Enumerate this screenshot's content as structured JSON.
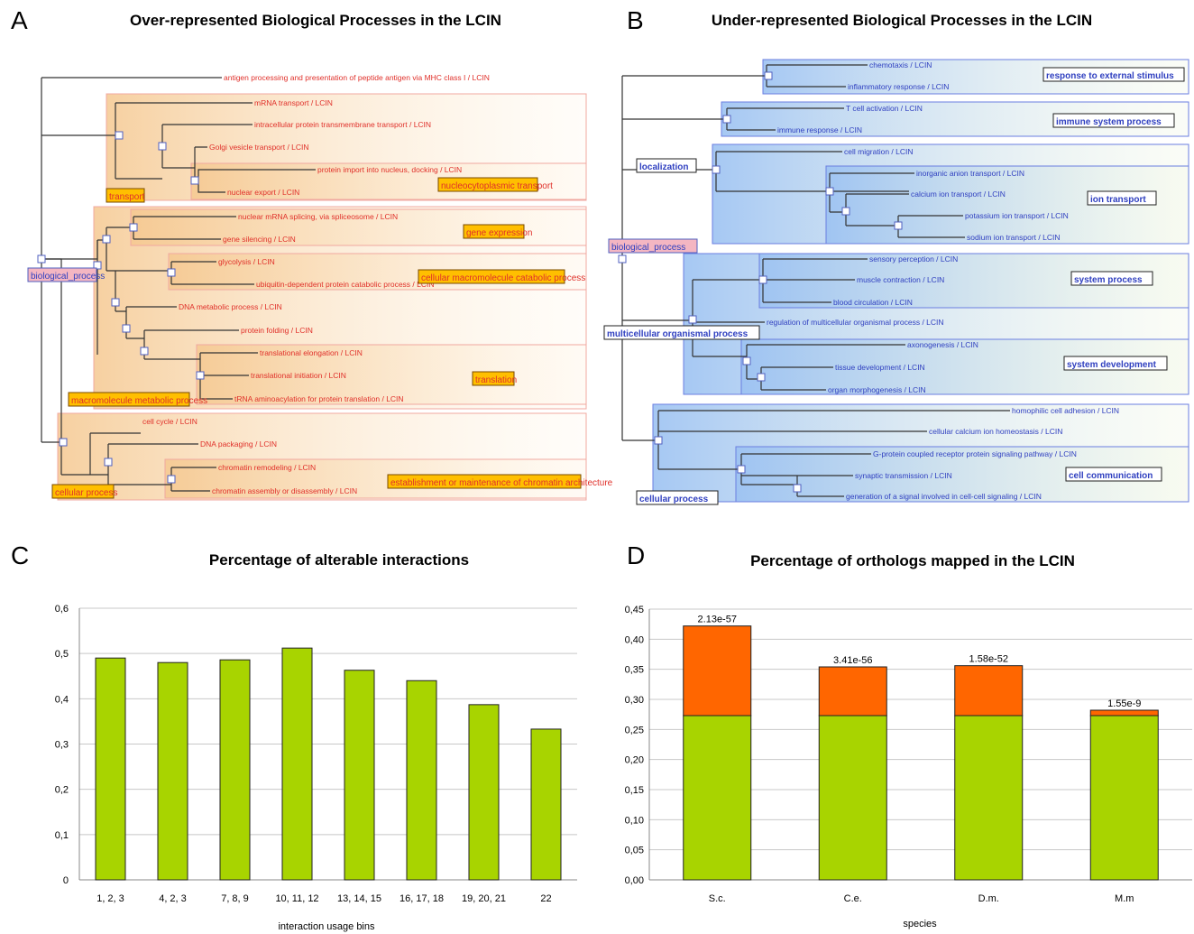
{
  "panels": {
    "A": {
      "letter": "A",
      "title": "Over-represented Biological Processes in the LCIN",
      "root": "biological_process",
      "groups": [
        {
          "key": "transport",
          "label": "transport"
        },
        {
          "key": "nucleo",
          "label": "nucleocytoplasmic transport"
        },
        {
          "key": "geneexp",
          "label": "gene expression"
        },
        {
          "key": "catab",
          "label": "cellular macromolecule catabolic process"
        },
        {
          "key": "transl",
          "label": "translation"
        },
        {
          "key": "macro",
          "label": "macromolecule metabolic process"
        },
        {
          "key": "cellproc",
          "label": "cellular process"
        },
        {
          "key": "chrom",
          "label": "establishment or maintenance of chromatin architecture"
        }
      ],
      "leaves": [
        "antigen processing and presentation of peptide antigen via MHC class I / LCIN",
        "mRNA transport / LCIN",
        "intracellular protein transmembrane transport / LCIN",
        "Golgi vesicle transport / LCIN",
        "protein import into nucleus, docking / LCIN",
        "nuclear export / LCIN",
        "nuclear mRNA splicing, via spliceosome / LCIN",
        "gene silencing / LCIN",
        "glycolysis / LCIN",
        "ubiquitin-dependent protein catabolic process / LCIN",
        "DNA metabolic process / LCIN",
        "protein folding / LCIN",
        "translational elongation / LCIN",
        "translational initiation / LCIN",
        "tRNA aminoacylation for protein translation / LCIN",
        "cell cycle / LCIN",
        "DNA packaging / LCIN",
        "chromatin remodeling / LCIN",
        "chromatin assembly or disassembly / LCIN"
      ]
    },
    "B": {
      "letter": "B",
      "title": "Under-represented Biological Processes in the LCIN",
      "root": "biological_process",
      "groups": [
        {
          "key": "respext",
          "label": "response to external stimulus"
        },
        {
          "key": "immune",
          "label": "immune system process"
        },
        {
          "key": "local",
          "label": "localization"
        },
        {
          "key": "iontr",
          "label": "ion transport"
        },
        {
          "key": "sysproc",
          "label": "system process"
        },
        {
          "key": "multi",
          "label": "multicellular organismal process"
        },
        {
          "key": "sysdev",
          "label": "system development"
        },
        {
          "key": "cellproc",
          "label": "cellular process"
        },
        {
          "key": "cellcomm",
          "label": "cell communication"
        }
      ],
      "leaves": [
        "chemotaxis / LCIN",
        "inflammatory response / LCIN",
        "T cell activation / LCIN",
        "immune response / LCIN",
        "cell migration / LCIN",
        "inorganic anion transport / LCIN",
        "calcium ion transport / LCIN",
        "potassium ion transport / LCIN",
        "sodium ion transport / LCIN",
        "sensory perception / LCIN",
        "muscle contraction / LCIN",
        "blood circulation / LCIN",
        "regulation of multicellular organismal process / LCIN",
        "axonogenesis / LCIN",
        "tissue development / LCIN",
        "organ morphogenesis / LCIN",
        "homophilic cell adhesion / LCIN",
        "cellular calcium ion homeostasis / LCIN",
        "G-protein coupled receptor protein signaling pathway / LCIN",
        "synaptic transmission / LCIN",
        "generation of a signal involved in cell-cell signaling / LCIN"
      ]
    },
    "C": {
      "letter": "C"
    },
    "D": {
      "letter": "D"
    }
  },
  "chart_data": [
    {
      "type": "bar",
      "title": "Percentage of alterable interactions",
      "xlabel": "interaction usage bins",
      "ylabel": "",
      "categories": [
        "1, 2, 3",
        "4, 2, 3",
        "7, 8, 9",
        "10, 11, 12",
        "13, 14, 15",
        "16, 17, 18",
        "19, 20, 21",
        "22"
      ],
      "values": [
        0.49,
        0.48,
        0.486,
        0.512,
        0.463,
        0.44,
        0.387,
        0.333
      ],
      "ylim": [
        0,
        0.6
      ],
      "yticks": [
        0,
        0.1,
        0.2,
        0.3,
        0.4,
        0.5,
        0.6
      ],
      "ytick_labels": [
        "0",
        "0,1",
        "0,2",
        "0,3",
        "0,4",
        "0,5",
        "0,6"
      ],
      "grid": true,
      "colors": {
        "bar": "#a8d400",
        "edge": "#222222",
        "grid": "#c8c8c8"
      }
    },
    {
      "type": "bar",
      "stacked": true,
      "title": "Percentage of orthologs mapped in the LCIN",
      "xlabel": "species",
      "ylabel": "",
      "categories": [
        "S.c.",
        "C.e.",
        "D.m.",
        "M.m"
      ],
      "series": [
        {
          "values": [
            0.273,
            0.273,
            0.273,
            0.273
          ],
          "color": "#a8d400"
        },
        {
          "values": [
            0.149,
            0.081,
            0.083,
            0.009
          ],
          "color": "#ff6600"
        }
      ],
      "annotations": [
        "2.13e-57",
        "3.41e-56",
        "1.58e-52",
        "1.55e-9"
      ],
      "ylim": [
        0,
        0.45
      ],
      "yticks": [
        0,
        0.05,
        0.1,
        0.15,
        0.2,
        0.25,
        0.3,
        0.35,
        0.4,
        0.45
      ],
      "ytick_labels": [
        "0,00",
        "0,05",
        "0,10",
        "0,15",
        "0,20",
        "0,25",
        "0,30",
        "0,35",
        "0,40",
        "0,45"
      ],
      "grid": true
    }
  ],
  "colors": {
    "treeA_text": "#e0302a",
    "treeA_box": "#f0a8a0",
    "treeA_label_bg": "#ffbf00",
    "treeB_text": "#3040c0",
    "treeB_box": "#6a7ee0",
    "root_bg": "#f4b6c2"
  }
}
